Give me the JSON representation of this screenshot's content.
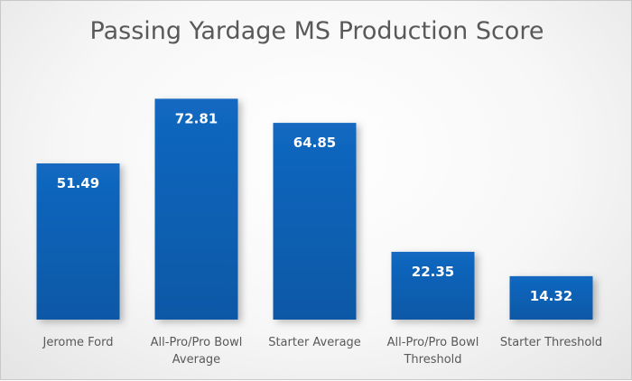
{
  "chart_data": {
    "type": "bar",
    "title": "Passing Yardage MS Production Score",
    "categories": [
      "Jerome Ford",
      "All-Pro/Pro Bowl Average",
      "Starter Average",
      "All-Pro/Pro Bowl Threshold",
      "Starter Threshold"
    ],
    "category_lines": [
      [
        "Jerome Ford"
      ],
      [
        "All-Pro/Pro Bowl",
        "Average"
      ],
      [
        "Starter Average"
      ],
      [
        "All-Pro/Pro Bowl",
        "Threshold"
      ],
      [
        "Starter Threshold"
      ]
    ],
    "values": [
      51.49,
      72.81,
      64.85,
      22.35,
      14.32
    ],
    "data_labels": [
      "51.49",
      "72.81",
      "64.85",
      "22.35",
      "14.32"
    ],
    "xlabel": "",
    "ylabel": "",
    "ylim": [
      0,
      80
    ],
    "grid": false,
    "legend": "none",
    "bar_color": "#1268c0",
    "bar_color_dark": "#0b58a6"
  }
}
